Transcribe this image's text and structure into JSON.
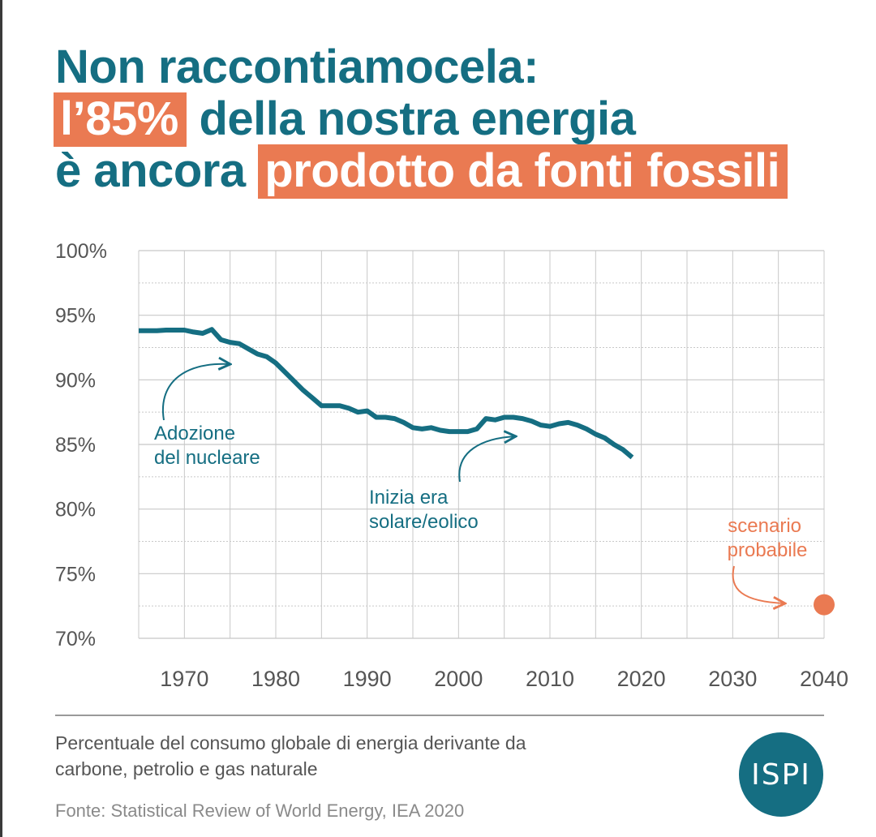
{
  "title": {
    "line1": "Non raccontiamocela:",
    "line2_highlight": "l’85%",
    "line2_rest": " della nostra energia",
    "line3_lead": "è ancora ",
    "line3_highlight": "prodotto da fonti fossili"
  },
  "caption": "Percentuale del consumo globale di energia derivante da carbone, petrolio e gas naturale",
  "source": "Fonte: Statistical Review of World Energy, IEA 2020",
  "logo": "ISPI",
  "colors": {
    "teal": "#156e82",
    "orange": "#ea7a52",
    "grid": "#c8c8c8",
    "tick_text": "#555555"
  },
  "chart_data": {
    "type": "line",
    "title": "Non raccontiamocela: l’85% della nostra energia è ancora prodotto da fonti fossili",
    "xlim": [
      1965,
      2040
    ],
    "ylim": [
      70,
      100
    ],
    "x_ticks": [
      1970,
      1980,
      1990,
      2000,
      2010,
      2020,
      2030,
      2040
    ],
    "y_ticks": [
      {
        "value": 100,
        "label": "100%"
      },
      {
        "value": 95,
        "label": "95%"
      },
      {
        "value": 90,
        "label": "90%"
      },
      {
        "value": 85,
        "label": "85%"
      },
      {
        "value": 80,
        "label": "80%"
      },
      {
        "value": 75,
        "label": "75%"
      },
      {
        "value": 70,
        "label": "70%"
      }
    ],
    "grid": true,
    "series": [
      {
        "color": "#156e82",
        "x": [
          1965,
          1966,
          1967,
          1968,
          1969,
          1970,
          1971,
          1972,
          1973,
          1974,
          1975,
          1976,
          1977,
          1978,
          1979,
          1980,
          1981,
          1982,
          1983,
          1984,
          1985,
          1986,
          1987,
          1988,
          1989,
          1990,
          1991,
          1992,
          1993,
          1994,
          1995,
          1996,
          1997,
          1998,
          1999,
          2000,
          2001,
          2002,
          2003,
          2004,
          2005,
          2006,
          2007,
          2008,
          2009,
          2010,
          2011,
          2012,
          2013,
          2014,
          2015,
          2016,
          2017,
          2018,
          2019
        ],
        "y": [
          93.8,
          93.8,
          93.8,
          93.85,
          93.85,
          93.85,
          93.7,
          93.6,
          93.9,
          93.1,
          92.9,
          92.8,
          92.4,
          92.0,
          91.8,
          91.3,
          90.6,
          89.9,
          89.2,
          88.6,
          88.0,
          88.0,
          88.0,
          87.8,
          87.5,
          87.6,
          87.1,
          87.1,
          87.0,
          86.7,
          86.3,
          86.2,
          86.3,
          86.1,
          86.0,
          86.0,
          86.0,
          86.2,
          87.0,
          86.9,
          87.1,
          87.1,
          87.0,
          86.8,
          86.5,
          86.4,
          86.6,
          86.7,
          86.5,
          86.2,
          85.8,
          85.5,
          85.0,
          84.6,
          84.0
        ]
      },
      {
        "name": "scenario probabile",
        "color": "#ea7a52",
        "x": [
          2040
        ],
        "y": [
          72.6
        ]
      }
    ],
    "annotations": [
      {
        "text_lines": [
          "Adozione",
          "del nucleare"
        ],
        "color": "#156e82"
      },
      {
        "text_lines": [
          "Inizia era",
          "solare/eolico"
        ],
        "color": "#156e82"
      },
      {
        "text_lines": [
          "scenario",
          "probabile"
        ],
        "color": "#ea7a52"
      }
    ]
  }
}
